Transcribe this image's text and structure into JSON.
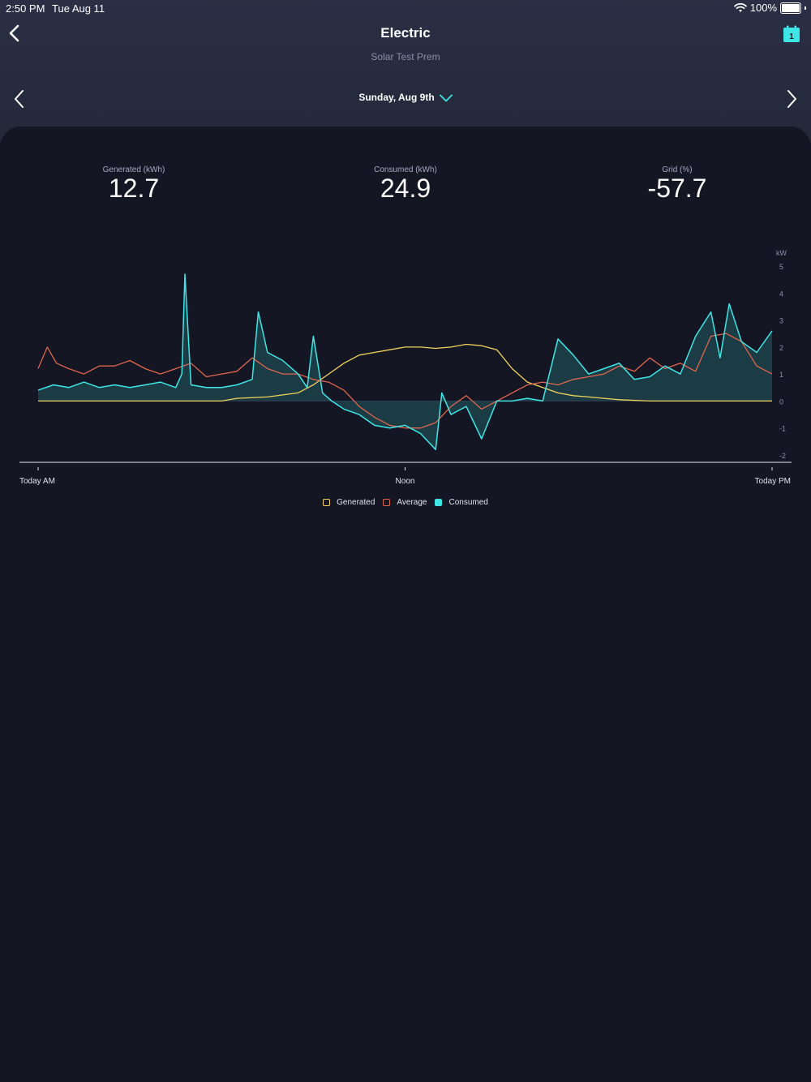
{
  "status_bar": {
    "time": "2:50 PM",
    "date": "Tue Aug 11",
    "battery": "100%"
  },
  "nav": {
    "title": "Electric",
    "subtitle": "Solar Test Prem"
  },
  "date_nav": {
    "label": "Sunday, Aug 9th"
  },
  "stats": [
    {
      "label": "Generated (kWh)",
      "value": "12.7"
    },
    {
      "label": "Consumed (kWh)",
      "value": "24.9"
    },
    {
      "label": "Grid (%)",
      "value": "-57.7"
    }
  ],
  "colors": {
    "generated": "#f2d45c",
    "average": "#e0664f",
    "consumed": "#3ee6e6",
    "accent": "#3ee6e6"
  },
  "icons": [
    "back-chevron-icon",
    "calendar-icon",
    "wifi-icon",
    "battery-icon",
    "chevron-left-icon",
    "chevron-right-icon",
    "chevron-down-icon"
  ],
  "chart_data": {
    "type": "line",
    "y_unit": "kW",
    "ylim": [
      -2,
      5
    ],
    "y_ticks": [
      "5",
      "4",
      "3",
      "2",
      "1",
      "0",
      "-1",
      "-2"
    ],
    "x_ticks": [
      "Today AM",
      "Noon",
      "Today PM"
    ],
    "xlim": [
      0,
      24
    ],
    "legend_position": "bottom-center",
    "series": [
      {
        "name": "Generated",
        "x": [
          0,
          6,
          6.5,
          7.5,
          8.5,
          9,
          9.5,
          10,
          10.5,
          11,
          11.5,
          12,
          12.5,
          13,
          13.5,
          14,
          14.5,
          15,
          15.5,
          16,
          16.5,
          17,
          17.5,
          18,
          18.5,
          19,
          20,
          24
        ],
        "values": [
          0,
          0,
          0.1,
          0.15,
          0.3,
          0.6,
          1.0,
          1.4,
          1.7,
          1.8,
          1.9,
          2.0,
          2.0,
          1.95,
          2.0,
          2.1,
          2.05,
          1.9,
          1.2,
          0.7,
          0.5,
          0.3,
          0.2,
          0.15,
          0.1,
          0.05,
          0,
          0
        ]
      },
      {
        "name": "Average",
        "x": [
          0,
          0.3,
          0.6,
          1,
          1.5,
          2,
          2.5,
          3,
          3.5,
          4,
          4.5,
          5,
          5.5,
          6,
          6.5,
          7,
          7.5,
          8,
          8.5,
          9,
          9.5,
          10,
          10.5,
          11,
          11.5,
          12,
          12.5,
          13,
          13.5,
          14,
          14.5,
          15,
          15.5,
          16,
          16.5,
          17,
          17.5,
          18,
          18.5,
          19,
          19.5,
          20,
          20.5,
          21,
          21.5,
          22,
          22.5,
          23,
          23.5,
          24
        ],
        "values": [
          1.2,
          2.0,
          1.4,
          1.2,
          1.0,
          1.3,
          1.3,
          1.5,
          1.2,
          1.0,
          1.2,
          1.4,
          0.9,
          1.0,
          1.1,
          1.6,
          1.2,
          1.0,
          1.0,
          0.8,
          0.7,
          0.4,
          -0.2,
          -0.6,
          -0.9,
          -1.0,
          -1.0,
          -0.8,
          -0.2,
          0.2,
          -0.3,
          0.0,
          0.3,
          0.6,
          0.7,
          0.6,
          0.8,
          0.9,
          1.0,
          1.3,
          1.1,
          1.6,
          1.2,
          1.4,
          1.1,
          2.4,
          2.5,
          2.2,
          1.3,
          1.0
        ]
      },
      {
        "name": "Consumed",
        "x": [
          0,
          0.5,
          1,
          1.5,
          2,
          2.5,
          3,
          3.5,
          4,
          4.5,
          4.7,
          4.8,
          5,
          5.5,
          6,
          6.5,
          7,
          7.2,
          7.5,
          8,
          8.5,
          8.8,
          9,
          9.3,
          9.6,
          10,
          10.5,
          11,
          11.5,
          12,
          12.5,
          13,
          13.2,
          13.5,
          14,
          14.5,
          15,
          15.5,
          16,
          16.5,
          17,
          17.5,
          18,
          18.5,
          19,
          19.5,
          20,
          20.5,
          21,
          21.5,
          22,
          22.3,
          22.6,
          23,
          23.5,
          24
        ],
        "values": [
          0.4,
          0.6,
          0.5,
          0.7,
          0.5,
          0.6,
          0.5,
          0.6,
          0.7,
          0.5,
          1.0,
          4.7,
          0.6,
          0.5,
          0.5,
          0.6,
          0.8,
          3.3,
          1.8,
          1.5,
          1.0,
          0.5,
          2.4,
          0.3,
          0.0,
          -0.3,
          -0.5,
          -0.9,
          -1.0,
          -0.9,
          -1.2,
          -1.8,
          0.3,
          -0.5,
          -0.2,
          -1.4,
          0.0,
          0.0,
          0.1,
          0.0,
          2.3,
          1.7,
          1.0,
          1.2,
          1.4,
          0.8,
          0.9,
          1.3,
          1.0,
          2.4,
          3.3,
          1.6,
          3.6,
          2.2,
          1.8,
          2.6
        ]
      }
    ]
  }
}
